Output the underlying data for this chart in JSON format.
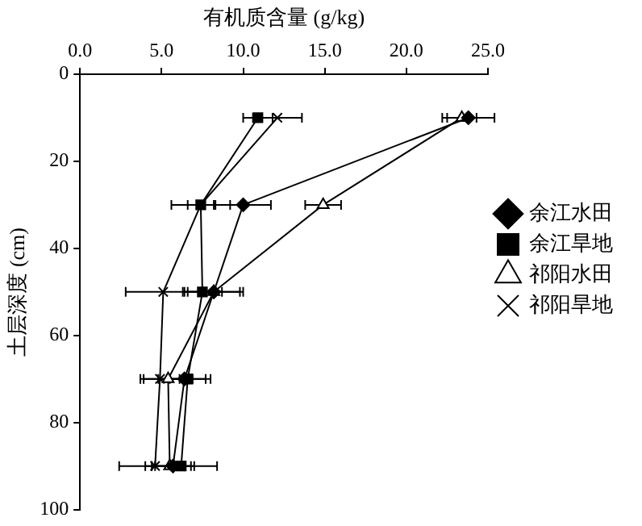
{
  "chart_data": {
    "type": "line",
    "xlabel": "有机质含量 (g/kg)",
    "ylabel": "土层深度 (cm)",
    "xlim": [
      0,
      25
    ],
    "xticks": [
      {
        "value": 0,
        "label": "0.0"
      },
      {
        "value": 5,
        "label": "5.0"
      },
      {
        "value": 10,
        "label": "10.0"
      },
      {
        "value": 15,
        "label": "15.0"
      },
      {
        "value": 20,
        "label": "20.0"
      },
      {
        "value": 25,
        "label": "25.0"
      }
    ],
    "ylim": [
      100,
      0
    ],
    "yticks": [
      0,
      20,
      40,
      60,
      80,
      100
    ],
    "grid": false,
    "legend": "right",
    "series": [
      {
        "name": "余江水田",
        "color": "#000000",
        "marker": "diamond",
        "x": [
          23.8,
          10.0,
          8.2,
          6.4,
          5.7
        ],
        "values": [
          10,
          30,
          50,
          70,
          90
        ],
        "xerrors": [
          1.6,
          1.7,
          1.8,
          1.6,
          1.3
        ]
      },
      {
        "name": "余江旱地",
        "color": "#000000",
        "marker": "square",
        "x": [
          10.9,
          7.4,
          7.5,
          6.6,
          6.2
        ],
        "values": [
          10,
          30,
          50,
          70,
          90
        ],
        "xerrors": [
          0.9,
          1.8,
          1.2,
          1.1,
          2.2
        ]
      },
      {
        "name": "祁阳水田",
        "color": "#000000",
        "marker": "triangle",
        "x": [
          23.4,
          14.9,
          8.2,
          5.4,
          5.5
        ],
        "values": [
          10,
          30,
          50,
          70,
          90
        ],
        "xerrors": [
          0.9,
          1.1,
          1.6,
          1.5,
          0.9
        ]
      },
      {
        "name": "祁阳旱地",
        "color": "#000000",
        "marker": "cross",
        "x": [
          12.1,
          7.4,
          5.1,
          4.9,
          4.6
        ],
        "values": [
          10,
          30,
          50,
          70,
          90
        ],
        "xerrors": [
          1.5,
          0.8,
          2.3,
          1.2,
          2.2
        ]
      }
    ]
  }
}
